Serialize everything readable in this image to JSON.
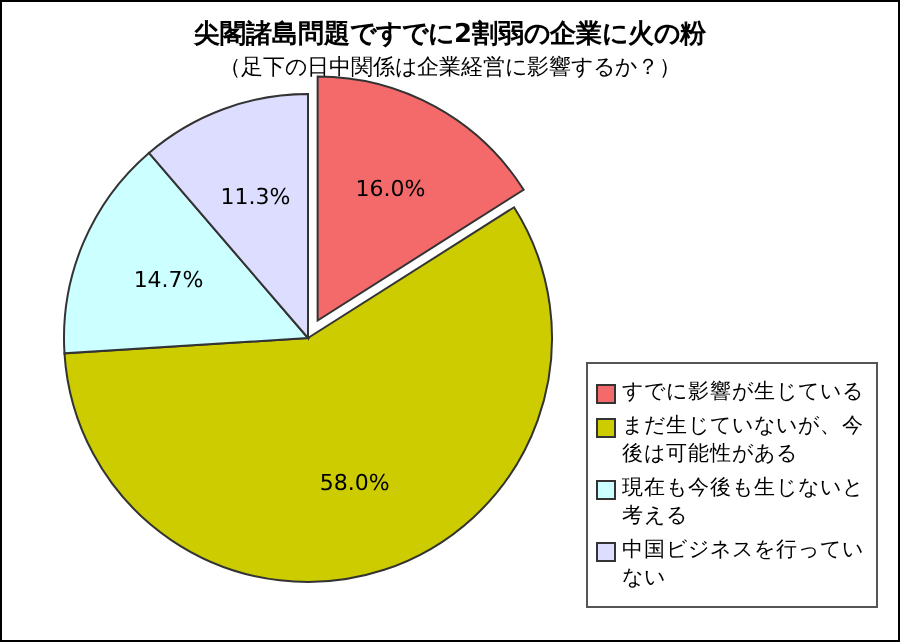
{
  "chart_data": {
    "type": "pie",
    "title": "尖閣諸島問題ですでに2割弱の企業に火の粉",
    "subtitle": "（足下の日中関係は企業経営に影響するか？）",
    "categories": [
      "すでに影響が生じている",
      "まだ生じていないが、今後は可能性がある",
      "現在も今後も生じないと考える",
      "中国ビジネスを行っていない"
    ],
    "values": [
      16.0,
      58.0,
      14.7,
      11.3
    ],
    "colors": [
      "#f46a6a",
      "#cccc00",
      "#ccffff",
      "#ddddff"
    ],
    "value_labels": [
      "16.0%",
      "58.0%",
      "14.7%",
      "11.3%"
    ],
    "legend": "right"
  }
}
